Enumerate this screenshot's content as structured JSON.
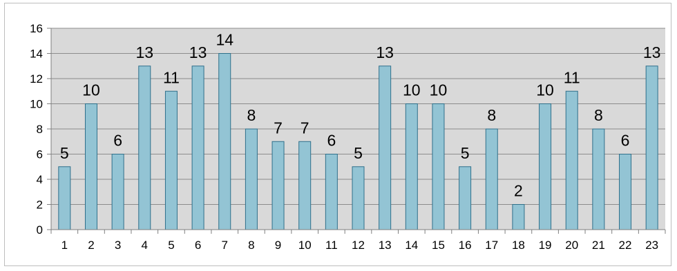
{
  "chart_data": {
    "type": "bar",
    "title": "",
    "xlabel": "",
    "ylabel": "",
    "categories": [
      "1",
      "2",
      "3",
      "4",
      "5",
      "6",
      "7",
      "8",
      "9",
      "10",
      "11",
      "12",
      "13",
      "14",
      "15",
      "16",
      "17",
      "18",
      "19",
      "20",
      "21",
      "22",
      "23"
    ],
    "values": [
      5,
      10,
      6,
      13,
      11,
      13,
      14,
      8,
      7,
      7,
      6,
      5,
      13,
      10,
      10,
      5,
      8,
      2,
      10,
      11,
      8,
      6,
      13
    ],
    "ylim": [
      0,
      16
    ],
    "yticks": [
      0,
      2,
      4,
      6,
      8,
      10,
      12,
      14,
      16
    ],
    "grid": true,
    "legend": "none",
    "data_labels": true,
    "colors": {
      "plot_background": "#d9d9d9",
      "bar_fill": "#93c4d4",
      "bar_stroke": "#2e6f8a",
      "gridline": "#8c8c8c",
      "axis": "#7f7f7f"
    }
  }
}
